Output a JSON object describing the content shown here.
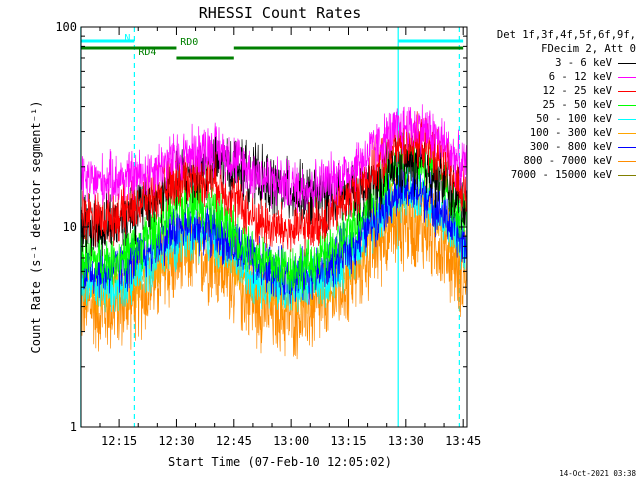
{
  "chart_data": {
    "type": "line",
    "title": "RHESSI Count Rates",
    "xlabel": "Start Time (07-Feb-10 12:05:02)",
    "ylabel": "Count Rate (s⁻¹ detector segment⁻¹)",
    "y_scale": "log",
    "ylim": [
      1,
      100
    ],
    "y_ticks": [
      "1",
      "10",
      "100"
    ],
    "xlim": [
      "12:05:02",
      "13:46:00"
    ],
    "x_ticks": [
      "12:15",
      "12:30",
      "12:45",
      "13:00",
      "13:15",
      "13:30",
      "13:45"
    ],
    "grid": false,
    "legend_header": [
      "Det 1f,3f,4f,5f,6f,9f,",
      "FDecim 2, Att 0"
    ],
    "legend_placement": "right",
    "series": [
      {
        "name": "3 - 6 keV",
        "color": "#000000",
        "x": [
          "12:05",
          "12:10",
          "12:15",
          "12:20",
          "12:25",
          "12:30",
          "12:35",
          "12:40",
          "12:45",
          "12:50",
          "12:55",
          "13:00",
          "13:05",
          "13:10",
          "13:15",
          "13:20",
          "13:25",
          "13:30",
          "13:35",
          "13:40",
          "13:45"
        ],
        "values": [
          10.5,
          10,
          11,
          12.5,
          14,
          17,
          19,
          21,
          20,
          18,
          16,
          15,
          14,
          14,
          14.5,
          16,
          19,
          21,
          20,
          17,
          13
        ]
      },
      {
        "name": "6 - 12 keV",
        "color": "#ff00ff",
        "x": [
          "12:05",
          "12:10",
          "12:15",
          "12:20",
          "12:25",
          "12:30",
          "12:35",
          "12:40",
          "12:45",
          "12:50",
          "12:55",
          "13:00",
          "13:05",
          "13:10",
          "13:15",
          "13:20",
          "13:25",
          "13:30",
          "13:35",
          "13:40",
          "13:45"
        ],
        "values": [
          17,
          17,
          17.5,
          18,
          20,
          22,
          24,
          25,
          22,
          19,
          17,
          16,
          16,
          17,
          19,
          23,
          28,
          32,
          31,
          26,
          20
        ]
      },
      {
        "name": "12 - 25 keV",
        "color": "#ff0000",
        "x": [
          "12:05",
          "12:10",
          "12:15",
          "12:20",
          "12:25",
          "12:30",
          "12:35",
          "12:40",
          "12:45",
          "12:50",
          "12:55",
          "13:00",
          "13:05",
          "13:10",
          "13:15",
          "13:20",
          "13:25",
          "13:30",
          "13:35",
          "13:40",
          "13:45"
        ],
        "values": [
          12,
          11,
          11.5,
          13,
          15,
          17,
          18,
          17,
          14,
          11,
          10,
          9.5,
          10,
          11.5,
          14,
          18,
          23,
          27,
          26,
          21,
          15
        ]
      },
      {
        "name": "25 - 50 keV",
        "color": "#00ff00",
        "x": [
          "12:05",
          "12:10",
          "12:15",
          "12:20",
          "12:25",
          "12:30",
          "12:35",
          "12:40",
          "12:45",
          "12:50",
          "12:55",
          "13:00",
          "13:05",
          "13:10",
          "13:15",
          "13:20",
          "13:25",
          "13:30",
          "13:35",
          "13:40",
          "13:45"
        ],
        "values": [
          7,
          6.8,
          7,
          8,
          10,
          12.5,
          14,
          12,
          9.5,
          7.5,
          6.5,
          6.2,
          6.5,
          7.5,
          9.5,
          13,
          18,
          22,
          21,
          16,
          11
        ]
      },
      {
        "name": "50 - 100 keV",
        "color": "#00ffff",
        "x": [
          "12:05",
          "12:10",
          "12:15",
          "12:20",
          "12:25",
          "12:30",
          "12:35",
          "12:40",
          "12:45",
          "12:50",
          "12:55",
          "13:00",
          "13:05",
          "13:10",
          "13:15",
          "13:20",
          "13:25",
          "13:30",
          "13:35",
          "13:40",
          "13:45"
        ],
        "values": [
          5.2,
          5,
          5.1,
          5.8,
          7,
          8.5,
          9.5,
          8.5,
          7,
          5.8,
          5.1,
          4.9,
          5,
          5.6,
          7,
          9.5,
          13,
          15,
          14,
          11,
          8
        ]
      },
      {
        "name": "100 - 300 keV",
        "color": "#ffa500",
        "x": [
          "12:05",
          "12:10",
          "12:15",
          "12:20",
          "12:25",
          "12:30",
          "12:35",
          "12:40",
          "12:45",
          "12:50",
          "12:55",
          "13:00",
          "13:05",
          "13:10",
          "13:15",
          "13:20",
          "13:25",
          "13:30",
          "13:35",
          "13:40",
          "13:45"
        ],
        "values": [
          5,
          4.8,
          4.9,
          5.5,
          6.7,
          8.2,
          9.2,
          8.2,
          6.7,
          5.5,
          4.9,
          4.7,
          4.8,
          5.4,
          6.7,
          9.2,
          12.5,
          14.5,
          13.5,
          10.5,
          7.5
        ]
      },
      {
        "name": "300 - 800 keV",
        "color": "#0000ff",
        "x": [
          "12:05",
          "12:10",
          "12:15",
          "12:20",
          "12:25",
          "12:30",
          "12:35",
          "12:40",
          "12:45",
          "12:50",
          "12:55",
          "13:00",
          "13:05",
          "13:10",
          "13:15",
          "13:20",
          "13:25",
          "13:30",
          "13:35",
          "13:40",
          "13:45"
        ],
        "values": [
          6.2,
          6,
          6.1,
          7,
          8.4,
          9.8,
          10.2,
          9.6,
          8,
          6.8,
          6,
          5.7,
          5.8,
          6.5,
          7.8,
          10,
          13.5,
          15.5,
          14.5,
          11.5,
          8.5
        ]
      },
      {
        "name": "800 - 7000 keV",
        "color": "#ff8c00",
        "x": [
          "12:05",
          "12:10",
          "12:15",
          "12:20",
          "12:25",
          "12:30",
          "12:35",
          "12:40",
          "12:45",
          "12:50",
          "12:55",
          "13:00",
          "13:05",
          "13:10",
          "13:15",
          "13:20",
          "13:25",
          "13:30",
          "13:35",
          "13:40",
          "13:45"
        ],
        "values": [
          4.2,
          3.9,
          4,
          4.5,
          5.5,
          6.8,
          7.5,
          6.8,
          5.4,
          4.3,
          3.8,
          3.7,
          3.8,
          4.3,
          5.4,
          7.2,
          9.5,
          10.5,
          9.8,
          7.8,
          5.8
        ]
      },
      {
        "name": "7000 - 15000 keV",
        "color": "#808000",
        "x": [],
        "values": []
      }
    ],
    "attenuator_bars": [
      {
        "label": "N",
        "color": "#00ffff",
        "segments": [
          [
            "12:05",
            "12:19"
          ],
          [
            "13:28",
            "13:45"
          ]
        ]
      },
      {
        "label": "RD0",
        "color": "#008000",
        "segments": [
          [
            "12:05",
            "12:30"
          ],
          [
            "12:45",
            "13:45"
          ]
        ]
      },
      {
        "label": "RD4",
        "color": "#008000",
        "segments": [
          [
            "12:30",
            "12:45"
          ]
        ]
      }
    ],
    "vertical_lines": [
      {
        "color": "#00ffff",
        "style": "solid",
        "x": "12:05"
      },
      {
        "color": "#00ffff",
        "style": "dashed",
        "x": "12:19"
      },
      {
        "color": "#00ffff",
        "style": "solid",
        "x": "13:28"
      },
      {
        "color": "#00ffff",
        "style": "dashed",
        "x": "13:44"
      }
    ]
  },
  "timestamp": "14-Oct-2021 03:38"
}
